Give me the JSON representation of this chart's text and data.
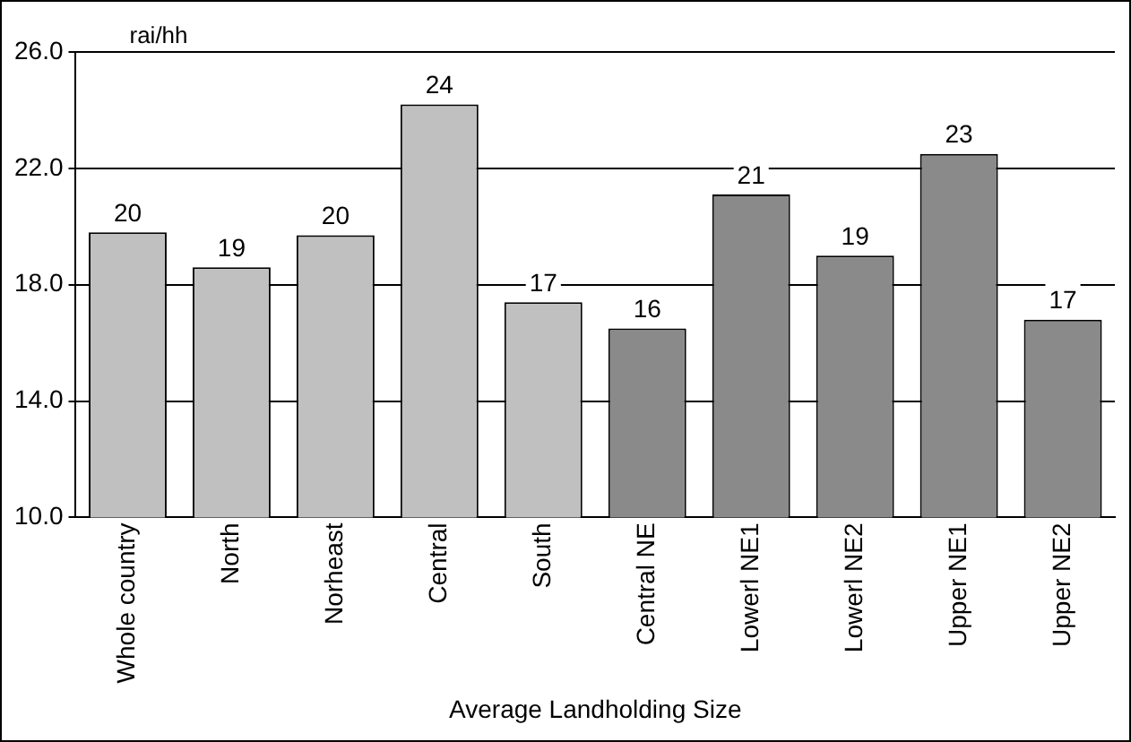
{
  "chart_data": {
    "type": "bar",
    "xlabel": "Average Landholding Size",
    "ylabel": "rai/hh",
    "categories": [
      "Whole country",
      "North",
      "Norheast",
      "Central",
      "South",
      "Central NE",
      "Lowerl NE1",
      "Lowerl NE2",
      "Upper NE1",
      "Upper NE2"
    ],
    "values": [
      19.8,
      18.6,
      19.7,
      24.2,
      17.4,
      16.5,
      21.1,
      19.0,
      22.5,
      16.8
    ],
    "value_labels": [
      "20",
      "19",
      "20",
      "24",
      "17",
      "16",
      "21",
      "19",
      "23",
      "17"
    ],
    "colors": [
      "#c0c0c0",
      "#c0c0c0",
      "#c0c0c0",
      "#c0c0c0",
      "#c0c0c0",
      "#8a8a8a",
      "#8a8a8a",
      "#8a8a8a",
      "#8a8a8a",
      "#8a8a8a"
    ],
    "ylim": [
      10,
      26
    ],
    "yticks": [
      {
        "value": 10,
        "label": "10.0"
      },
      {
        "value": 14,
        "label": "14.0"
      },
      {
        "value": 18,
        "label": "18.0"
      },
      {
        "value": 22,
        "label": "22.0"
      },
      {
        "value": 26,
        "label": "26.0"
      }
    ],
    "grid": "y"
  }
}
